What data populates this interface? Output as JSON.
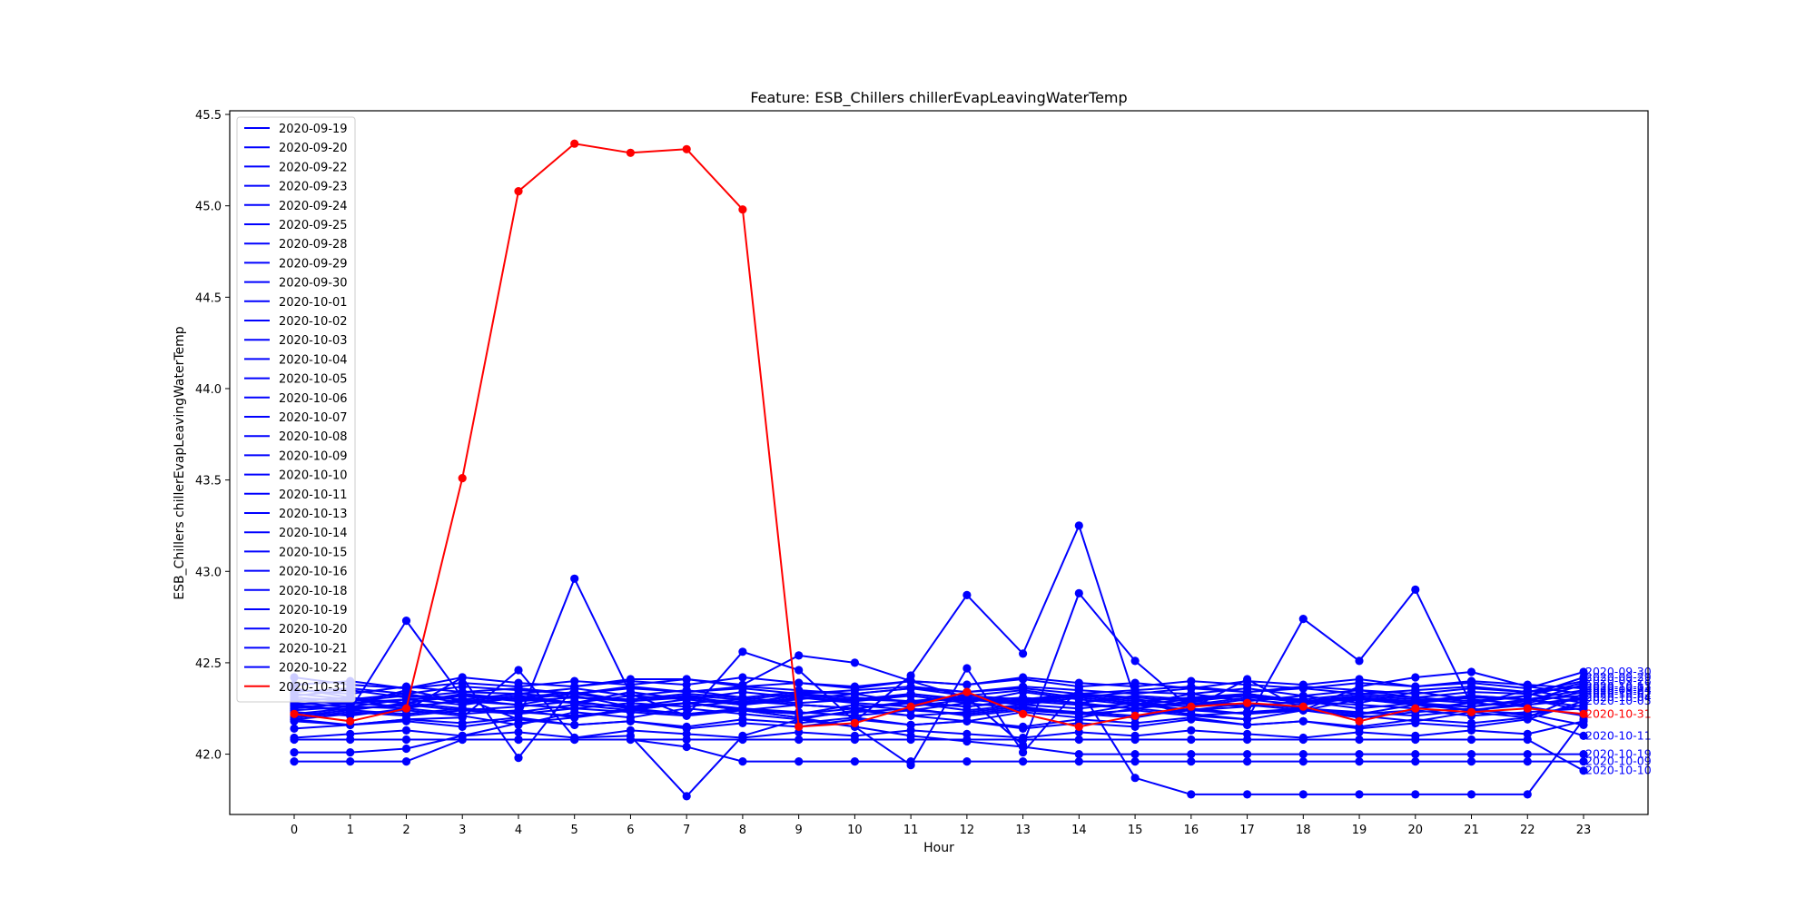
{
  "chart_data": {
    "type": "line",
    "title": "Feature: ESB_Chillers chillerEvapLeavingWaterTemp",
    "xlabel": "Hour",
    "ylabel": "ESB_Chillers chillerEvapLeavingWaterTemp",
    "x": [
      0,
      1,
      2,
      3,
      4,
      5,
      6,
      7,
      8,
      9,
      10,
      11,
      12,
      13,
      14,
      15,
      16,
      17,
      18,
      19,
      20,
      21,
      22,
      23
    ],
    "xticks": [
      "0",
      "1",
      "2",
      "3",
      "4",
      "5",
      "6",
      "7",
      "8",
      "9",
      "10",
      "11",
      "12",
      "13",
      "14",
      "15",
      "16",
      "17",
      "18",
      "19",
      "20",
      "21",
      "22",
      "23"
    ],
    "yticks": [
      "42.0",
      "42.5",
      "43.0",
      "43.5",
      "44.0",
      "44.5",
      "45.0",
      "45.5"
    ],
    "ylim": [
      41.67,
      45.52
    ],
    "xlim": [
      -1.15,
      24.15
    ],
    "grid": false,
    "legend_position": "upper left",
    "colors": {
      "normal": "#0000ff",
      "highlight": "#ff0000"
    },
    "series": [
      {
        "name": "2020-09-19",
        "color": "#0000ff",
        "values": [
          42.29,
          42.28,
          42.3,
          42.32,
          42.29,
          42.31,
          42.3,
          42.33,
          42.31,
          42.28,
          42.3,
          42.29,
          42.31,
          42.28,
          42.33,
          42.3,
          42.27,
          42.31,
          42.29,
          42.3,
          42.28,
          42.31,
          42.3,
          42.32
        ]
      },
      {
        "name": "2020-09-20",
        "color": "#0000ff",
        "values": [
          42.24,
          42.26,
          42.25,
          42.3,
          42.27,
          42.32,
          42.26,
          42.28,
          42.3,
          42.27,
          42.25,
          42.29,
          42.26,
          42.3,
          42.28,
          42.25,
          42.29,
          42.27,
          42.24,
          42.3,
          42.27,
          42.26,
          42.29,
          42.38
        ]
      },
      {
        "name": "2020-09-22",
        "color": "#0000ff",
        "values": [
          42.33,
          42.3,
          42.28,
          42.33,
          42.3,
          42.28,
          42.32,
          42.3,
          42.34,
          42.31,
          42.29,
          42.33,
          42.3,
          42.28,
          42.32,
          42.29,
          42.31,
          42.33,
          42.29,
          42.32,
          42.3,
          42.28,
          42.32,
          42.39
        ]
      },
      {
        "name": "2020-09-23",
        "color": "#0000ff",
        "values": [
          42.2,
          42.23,
          42.21,
          42.24,
          42.22,
          42.25,
          42.23,
          42.21,
          42.24,
          42.22,
          42.25,
          42.21,
          42.23,
          42.26,
          42.22,
          42.24,
          42.21,
          42.23,
          42.25,
          42.22,
          42.24,
          42.21,
          42.23,
          42.25
        ]
      },
      {
        "name": "2020-09-24",
        "color": "#0000ff",
        "values": [
          42.27,
          42.3,
          42.33,
          42.28,
          42.31,
          42.34,
          42.29,
          42.32,
          42.27,
          42.3,
          42.33,
          42.28,
          42.31,
          42.29,
          42.33,
          42.27,
          42.3,
          42.32,
          42.28,
          42.31,
          42.29,
          42.32,
          42.3,
          42.35
        ]
      },
      {
        "name": "2020-09-25",
        "color": "#0000ff",
        "values": [
          42.22,
          42.25,
          42.27,
          42.24,
          42.26,
          42.29,
          42.25,
          42.28,
          42.24,
          42.27,
          42.25,
          42.28,
          42.24,
          42.27,
          42.25,
          42.28,
          42.24,
          42.26,
          42.29,
          42.25,
          42.28,
          42.24,
          42.27,
          42.3
        ]
      },
      {
        "name": "2020-09-28",
        "color": "#0000ff",
        "values": [
          42.35,
          42.33,
          42.37,
          42.34,
          42.36,
          42.33,
          42.37,
          42.34,
          42.36,
          42.33,
          42.35,
          42.37,
          42.34,
          42.36,
          42.33,
          42.35,
          42.37,
          42.34,
          42.36,
          42.33,
          42.35,
          42.37,
          42.34,
          42.4
        ]
      },
      {
        "name": "2020-09-29",
        "color": "#0000ff",
        "values": [
          42.31,
          42.29,
          42.32,
          42.3,
          42.33,
          42.31,
          42.29,
          42.32,
          42.3,
          42.33,
          42.31,
          42.29,
          42.32,
          42.3,
          42.33,
          42.31,
          42.29,
          42.32,
          42.3,
          42.33,
          42.31,
          42.29,
          42.32,
          42.42
        ]
      },
      {
        "name": "2020-09-30",
        "color": "#0000ff",
        "values": [
          42.38,
          42.4,
          42.36,
          42.39,
          42.37,
          42.4,
          42.38,
          42.41,
          42.37,
          42.39,
          42.36,
          42.4,
          42.38,
          42.41,
          42.37,
          42.39,
          42.36,
          42.4,
          42.38,
          42.41,
          42.37,
          42.39,
          42.36,
          42.45
        ]
      },
      {
        "name": "2020-10-01",
        "color": "#0000ff",
        "values": [
          42.42,
          42.38,
          42.36,
          42.42,
          42.39,
          42.37,
          42.4,
          42.38,
          42.42,
          42.39,
          42.37,
          42.4,
          42.38,
          42.42,
          42.39,
          42.37,
          42.4,
          42.38,
          42.36,
          42.39,
          42.37,
          42.4,
          42.38,
          42.36
        ]
      },
      {
        "name": "2020-10-02",
        "color": "#0000ff",
        "values": [
          42.19,
          42.22,
          42.24,
          42.21,
          42.16,
          42.23,
          42.2,
          42.25,
          42.22,
          42.19,
          42.24,
          42.21,
          42.18,
          42.23,
          42.2,
          42.25,
          42.22,
          42.19,
          42.24,
          42.21,
          42.18,
          42.23,
          42.2,
          42.33
        ]
      },
      {
        "name": "2020-10-03",
        "color": "#0000ff",
        "values": [
          42.26,
          42.24,
          42.28,
          42.25,
          42.23,
          42.27,
          42.24,
          42.28,
          42.25,
          42.22,
          42.27,
          42.24,
          42.28,
          42.25,
          42.22,
          42.27,
          42.24,
          42.28,
          42.25,
          42.22,
          42.27,
          42.24,
          42.28,
          42.34
        ]
      },
      {
        "name": "2020-10-04",
        "color": "#0000ff",
        "values": [
          42.3,
          42.27,
          42.35,
          42.29,
          42.32,
          42.28,
          42.34,
          42.3,
          42.27,
          42.33,
          42.29,
          42.32,
          42.28,
          42.34,
          42.3,
          42.27,
          42.33,
          42.29,
          42.32,
          42.28,
          42.34,
          42.3,
          42.27,
          42.31
        ]
      },
      {
        "name": "2020-10-05",
        "color": "#0000ff",
        "values": [
          42.14,
          42.16,
          42.18,
          42.15,
          42.19,
          42.16,
          42.18,
          42.14,
          42.17,
          42.15,
          42.19,
          42.16,
          42.18,
          42.14,
          42.17,
          42.15,
          42.19,
          42.16,
          42.18,
          42.14,
          42.17,
          42.15,
          42.19,
          42.29
        ]
      },
      {
        "name": "2020-10-06",
        "color": "#0000ff",
        "values": [
          42.23,
          42.21,
          42.25,
          42.22,
          42.24,
          42.2,
          42.25,
          42.22,
          42.24,
          42.2,
          42.23,
          42.25,
          42.21,
          42.24,
          42.22,
          42.2,
          42.25,
          42.22,
          42.24,
          42.2,
          42.23,
          42.25,
          42.21,
          42.27
        ]
      },
      {
        "name": "2020-10-07",
        "color": "#0000ff",
        "values": [
          42.29,
          42.31,
          42.28,
          42.32,
          42.3,
          42.33,
          42.29,
          42.31,
          42.28,
          42.32,
          42.3,
          42.33,
          42.29,
          42.31,
          42.28,
          42.32,
          42.3,
          42.33,
          42.29,
          42.31,
          42.28,
          42.32,
          42.3,
          42.26
        ]
      },
      {
        "name": "2020-10-08",
        "color": "#0000ff",
        "values": [
          42.09,
          42.11,
          42.13,
          42.1,
          42.12,
          42.09,
          42.13,
          42.11,
          42.09,
          42.12,
          42.1,
          42.13,
          42.11,
          42.09,
          42.12,
          42.1,
          42.13,
          42.11,
          42.09,
          42.12,
          42.1,
          42.13,
          42.11,
          42.18
        ]
      },
      {
        "name": "2020-10-09",
        "color": "#0000ff",
        "values": [
          41.96,
          41.96,
          41.96,
          42.08,
          42.08,
          42.08,
          42.08,
          42.04,
          41.96,
          41.96,
          41.96,
          41.96,
          41.96,
          41.96,
          41.96,
          41.96,
          41.96,
          41.96,
          41.96,
          41.96,
          41.96,
          41.96,
          41.96,
          41.96
        ]
      },
      {
        "name": "2020-10-10",
        "color": "#0000ff",
        "values": [
          42.08,
          42.08,
          42.08,
          42.08,
          42.08,
          42.08,
          42.08,
          42.08,
          42.08,
          42.08,
          42.08,
          42.08,
          42.08,
          42.08,
          42.08,
          42.08,
          42.08,
          42.08,
          42.08,
          42.08,
          42.08,
          42.08,
          42.08,
          41.91
        ]
      },
      {
        "name": "2020-10-11",
        "color": "#0000ff",
        "values": [
          42.18,
          42.16,
          42.19,
          42.17,
          42.2,
          42.16,
          42.18,
          42.15,
          42.19,
          42.17,
          42.2,
          42.16,
          42.18,
          42.15,
          42.19,
          42.17,
          42.2,
          42.16,
          42.18,
          42.15,
          42.19,
          42.17,
          42.2,
          42.1
        ]
      },
      {
        "name": "2020-10-13",
        "color": "#0000ff",
        "values": [
          42.34,
          42.36,
          42.33,
          42.37,
          42.35,
          42.33,
          42.36,
          42.34,
          42.37,
          42.35,
          42.33,
          42.36,
          42.34,
          42.37,
          42.35,
          42.33,
          42.36,
          42.34,
          42.37,
          42.35,
          42.33,
          42.36,
          42.34,
          42.37
        ]
      },
      {
        "name": "2020-10-14",
        "color": "#0000ff",
        "values": [
          42.25,
          42.28,
          42.26,
          42.29,
          42.27,
          42.25,
          42.28,
          42.26,
          42.29,
          42.27,
          42.25,
          42.28,
          42.26,
          42.29,
          42.27,
          42.25,
          42.28,
          42.26,
          42.29,
          42.27,
          42.25,
          42.28,
          42.26,
          42.21
        ]
      },
      {
        "name": "2020-10-15",
        "color": "#0000ff",
        "values": [
          42.21,
          42.24,
          42.22,
          42.25,
          42.23,
          42.21,
          42.24,
          42.22,
          42.25,
          42.23,
          42.21,
          42.24,
          42.22,
          42.25,
          42.23,
          42.21,
          42.24,
          42.22,
          42.25,
          42.23,
          42.21,
          42.24,
          42.22,
          42.16
        ]
      },
      {
        "name": "2020-10-16",
        "color": "#0000ff",
        "values": [
          42.28,
          42.26,
          42.3,
          42.27,
          42.31,
          42.28,
          42.26,
          42.3,
          42.27,
          42.31,
          42.28,
          42.26,
          42.3,
          42.27,
          42.31,
          42.28,
          42.26,
          42.3,
          42.27,
          42.31,
          42.28,
          42.26,
          42.3,
          42.24
        ]
      },
      {
        "name": "2020-10-18",
        "color": "#0000ff",
        "values": [
          42.32,
          42.35,
          42.31,
          42.34,
          42.33,
          42.36,
          42.32,
          42.35,
          42.31,
          42.34,
          42.33,
          42.36,
          42.32,
          42.35,
          42.31,
          42.34,
          42.33,
          42.36,
          42.32,
          42.35,
          42.31,
          42.34,
          42.33,
          42.28
        ]
      },
      {
        "name": "2020-10-19",
        "color": "#0000ff",
        "values": [
          42.01,
          42.01,
          42.03,
          42.1,
          42.17,
          42.2,
          42.24,
          42.28,
          42.24,
          42.2,
          42.15,
          42.1,
          42.07,
          42.04,
          42.0,
          42.0,
          42.0,
          42.0,
          42.0,
          42.0,
          42.0,
          42.0,
          42.0,
          42.0
        ]
      },
      {
        "name": "2020-10-20",
        "color": "#0000ff",
        "values": [
          42.27,
          42.24,
          42.73,
          42.31,
          42.19,
          42.96,
          42.33,
          42.21,
          42.56,
          42.46,
          42.18,
          42.43,
          42.87,
          42.55,
          43.25,
          42.3,
          42.21,
          42.19,
          42.74,
          42.51,
          42.9,
          42.27,
          42.35,
          42.3
        ]
      },
      {
        "name": "2020-10-21",
        "color": "#0000ff",
        "values": [
          42.36,
          42.31,
          42.24,
          42.42,
          41.98,
          42.37,
          42.41,
          42.41,
          42.38,
          42.54,
          42.5,
          42.4,
          42.31,
          42.05,
          42.88,
          42.51,
          42.25,
          42.41,
          42.24,
          42.37,
          42.42,
          42.45,
          42.37,
          42.33
        ]
      },
      {
        "name": "2020-10-22",
        "color": "#0000ff",
        "values": [
          42.19,
          42.16,
          42.19,
          42.2,
          42.46,
          42.09,
          42.1,
          41.77,
          42.1,
          42.19,
          42.15,
          41.94,
          42.47,
          42.01,
          42.36,
          41.87,
          41.78,
          41.78,
          41.78,
          41.78,
          41.78,
          41.78,
          41.78,
          42.19
        ]
      },
      {
        "name": "2020-10-31",
        "color": "#ff0000",
        "values": [
          42.22,
          42.18,
          42.25,
          43.51,
          45.08,
          45.34,
          45.29,
          45.31,
          44.98,
          42.15,
          42.17,
          42.26,
          42.34,
          42.22,
          42.15,
          42.21,
          42.26,
          42.28,
          42.26,
          42.18,
          42.25,
          42.23,
          42.25,
          42.22
        ]
      }
    ],
    "end_labels": [
      {
        "text": "2020-09-30",
        "series": "2020-09-30"
      },
      {
        "text": "2020-09-29",
        "series": "2020-09-29"
      },
      {
        "text": "2020-09-28",
        "series": "2020-09-28"
      },
      {
        "text": "2020-10-01",
        "series": "2020-10-01"
      },
      {
        "text": "2020-10-02",
        "series": "2020-10-02"
      },
      {
        "text": "2020-10-03",
        "series": "2020-10-03"
      },
      {
        "text": "2020-10-13",
        "series": "2020-10-13"
      },
      {
        "text": "2020-09-24",
        "series": "2020-09-24"
      },
      {
        "text": "2020-10-04",
        "series": "2020-10-04"
      },
      {
        "text": "2020-10-05",
        "series": "2020-10-05"
      },
      {
        "text": "2020-10-11",
        "series": "2020-10-11"
      },
      {
        "text": "2020-10-19",
        "series": "2020-10-19"
      },
      {
        "text": "2020-10-09",
        "series": "2020-10-09"
      },
      {
        "text": "2020-10-10",
        "series": "2020-10-10"
      },
      {
        "text": "2020-10-31",
        "series": "2020-10-31"
      }
    ]
  }
}
